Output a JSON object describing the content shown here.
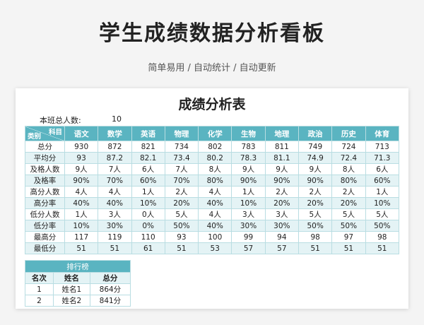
{
  "header": {
    "title": "学生成绩数据分析看板",
    "subtitle": "简单易用 / 自动统计 / 自动更新"
  },
  "sheet": {
    "title": "成绩分析表",
    "count_label": "本班总人数:",
    "count_value": "10",
    "corner_top": "科目",
    "corner_bottom": "类别",
    "subjects": [
      "语文",
      "数学",
      "英语",
      "物理",
      "化学",
      "生物",
      "地理",
      "政治",
      "历史",
      "体育"
    ],
    "rows": [
      {
        "label": "总分",
        "cells": [
          "930",
          "872",
          "821",
          "734",
          "802",
          "783",
          "811",
          "749",
          "724",
          "713"
        ]
      },
      {
        "label": "平均分",
        "cells": [
          "93",
          "87.2",
          "82.1",
          "73.4",
          "80.2",
          "78.3",
          "81.1",
          "74.9",
          "72.4",
          "71.3"
        ]
      },
      {
        "label": "及格人数",
        "cells": [
          "9人",
          "7人",
          "6人",
          "7人",
          "8人",
          "9人",
          "9人",
          "9人",
          "8人",
          "6人"
        ]
      },
      {
        "label": "及格率",
        "cells": [
          "90%",
          "70%",
          "60%",
          "70%",
          "80%",
          "90%",
          "90%",
          "90%",
          "80%",
          "60%"
        ]
      },
      {
        "label": "高分人数",
        "cells": [
          "4人",
          "4人",
          "1人",
          "2人",
          "4人",
          "1人",
          "2人",
          "2人",
          "2人",
          "1人"
        ]
      },
      {
        "label": "高分率",
        "cells": [
          "40%",
          "40%",
          "10%",
          "20%",
          "40%",
          "10%",
          "20%",
          "20%",
          "20%",
          "10%"
        ]
      },
      {
        "label": "低分人数",
        "cells": [
          "1人",
          "3人",
          "0人",
          "5人",
          "4人",
          "3人",
          "3人",
          "5人",
          "5人",
          "5人"
        ]
      },
      {
        "label": "低分率",
        "cells": [
          "10%",
          "30%",
          "0%",
          "50%",
          "40%",
          "30%",
          "30%",
          "50%",
          "50%",
          "50%"
        ]
      },
      {
        "label": "最高分",
        "cells": [
          "117",
          "119",
          "110",
          "93",
          "100",
          "99",
          "94",
          "98",
          "97",
          "98"
        ]
      },
      {
        "label": "最低分",
        "cells": [
          "51",
          "51",
          "61",
          "51",
          "53",
          "57",
          "57",
          "51",
          "51",
          "51"
        ]
      }
    ]
  },
  "ranking": {
    "title": "排行榜",
    "columns": [
      "名次",
      "姓名",
      "总分"
    ],
    "rows": [
      [
        "1",
        "姓名1",
        "864分"
      ],
      [
        "2",
        "姓名2",
        "841分"
      ]
    ]
  }
}
